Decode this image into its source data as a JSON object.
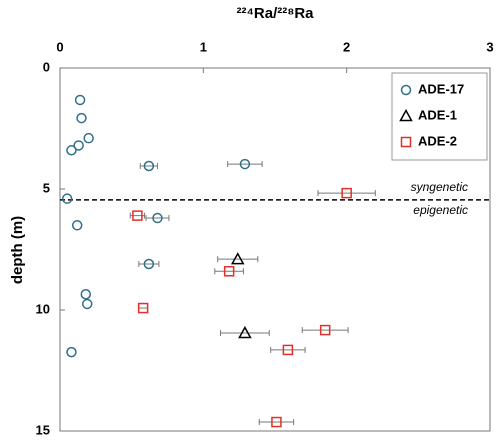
{
  "chart_data": {
    "type": "scatter",
    "title": "²²⁴Ra/²²⁸Ra",
    "y_label": "depth (m)",
    "xlim": [
      0,
      3
    ],
    "xticks": [
      0,
      1,
      2,
      3
    ],
    "ylim": [
      0,
      15
    ],
    "yticks": [
      0,
      5,
      10,
      15
    ],
    "y_inverted": true,
    "boundary_depth": 5.45,
    "annotations": [
      "syngenetic",
      "epigenetic"
    ],
    "legend": "upper right",
    "series": [
      {
        "name": "ADE-17",
        "marker": "circle",
        "color": "#2f6f8c",
        "x": [
          0.14,
          0.15,
          0.2,
          0.13,
          0.08,
          0.62,
          1.29,
          0.05,
          0.68,
          0.12,
          0.62,
          0.18,
          0.19,
          0.08
        ],
        "y": [
          1.32,
          2.07,
          2.9,
          3.2,
          3.4,
          4.05,
          3.97,
          5.4,
          6.2,
          6.5,
          8.1,
          9.35,
          9.75,
          11.74
        ],
        "xerr": [
          null,
          null,
          null,
          null,
          null,
          0.06,
          0.12,
          null,
          0.08,
          null,
          0.07,
          null,
          null,
          null
        ]
      },
      {
        "name": "ADE-1",
        "marker": "triangle",
        "color": "#000000",
        "x": [
          1.24,
          1.29
        ],
        "y": [
          7.9,
          10.95
        ],
        "xerr": [
          0.14,
          0.17
        ]
      },
      {
        "name": "ADE-2",
        "marker": "square",
        "color": "#e0302a",
        "x": [
          2.0,
          0.54,
          1.18,
          0.58,
          1.85,
          1.59,
          1.51
        ],
        "y": [
          5.17,
          6.1,
          8.4,
          9.92,
          10.83,
          11.65,
          14.63
        ],
        "xerr": [
          0.2,
          0.05,
          0.1,
          0.03,
          0.16,
          0.12,
          0.12
        ]
      }
    ]
  }
}
